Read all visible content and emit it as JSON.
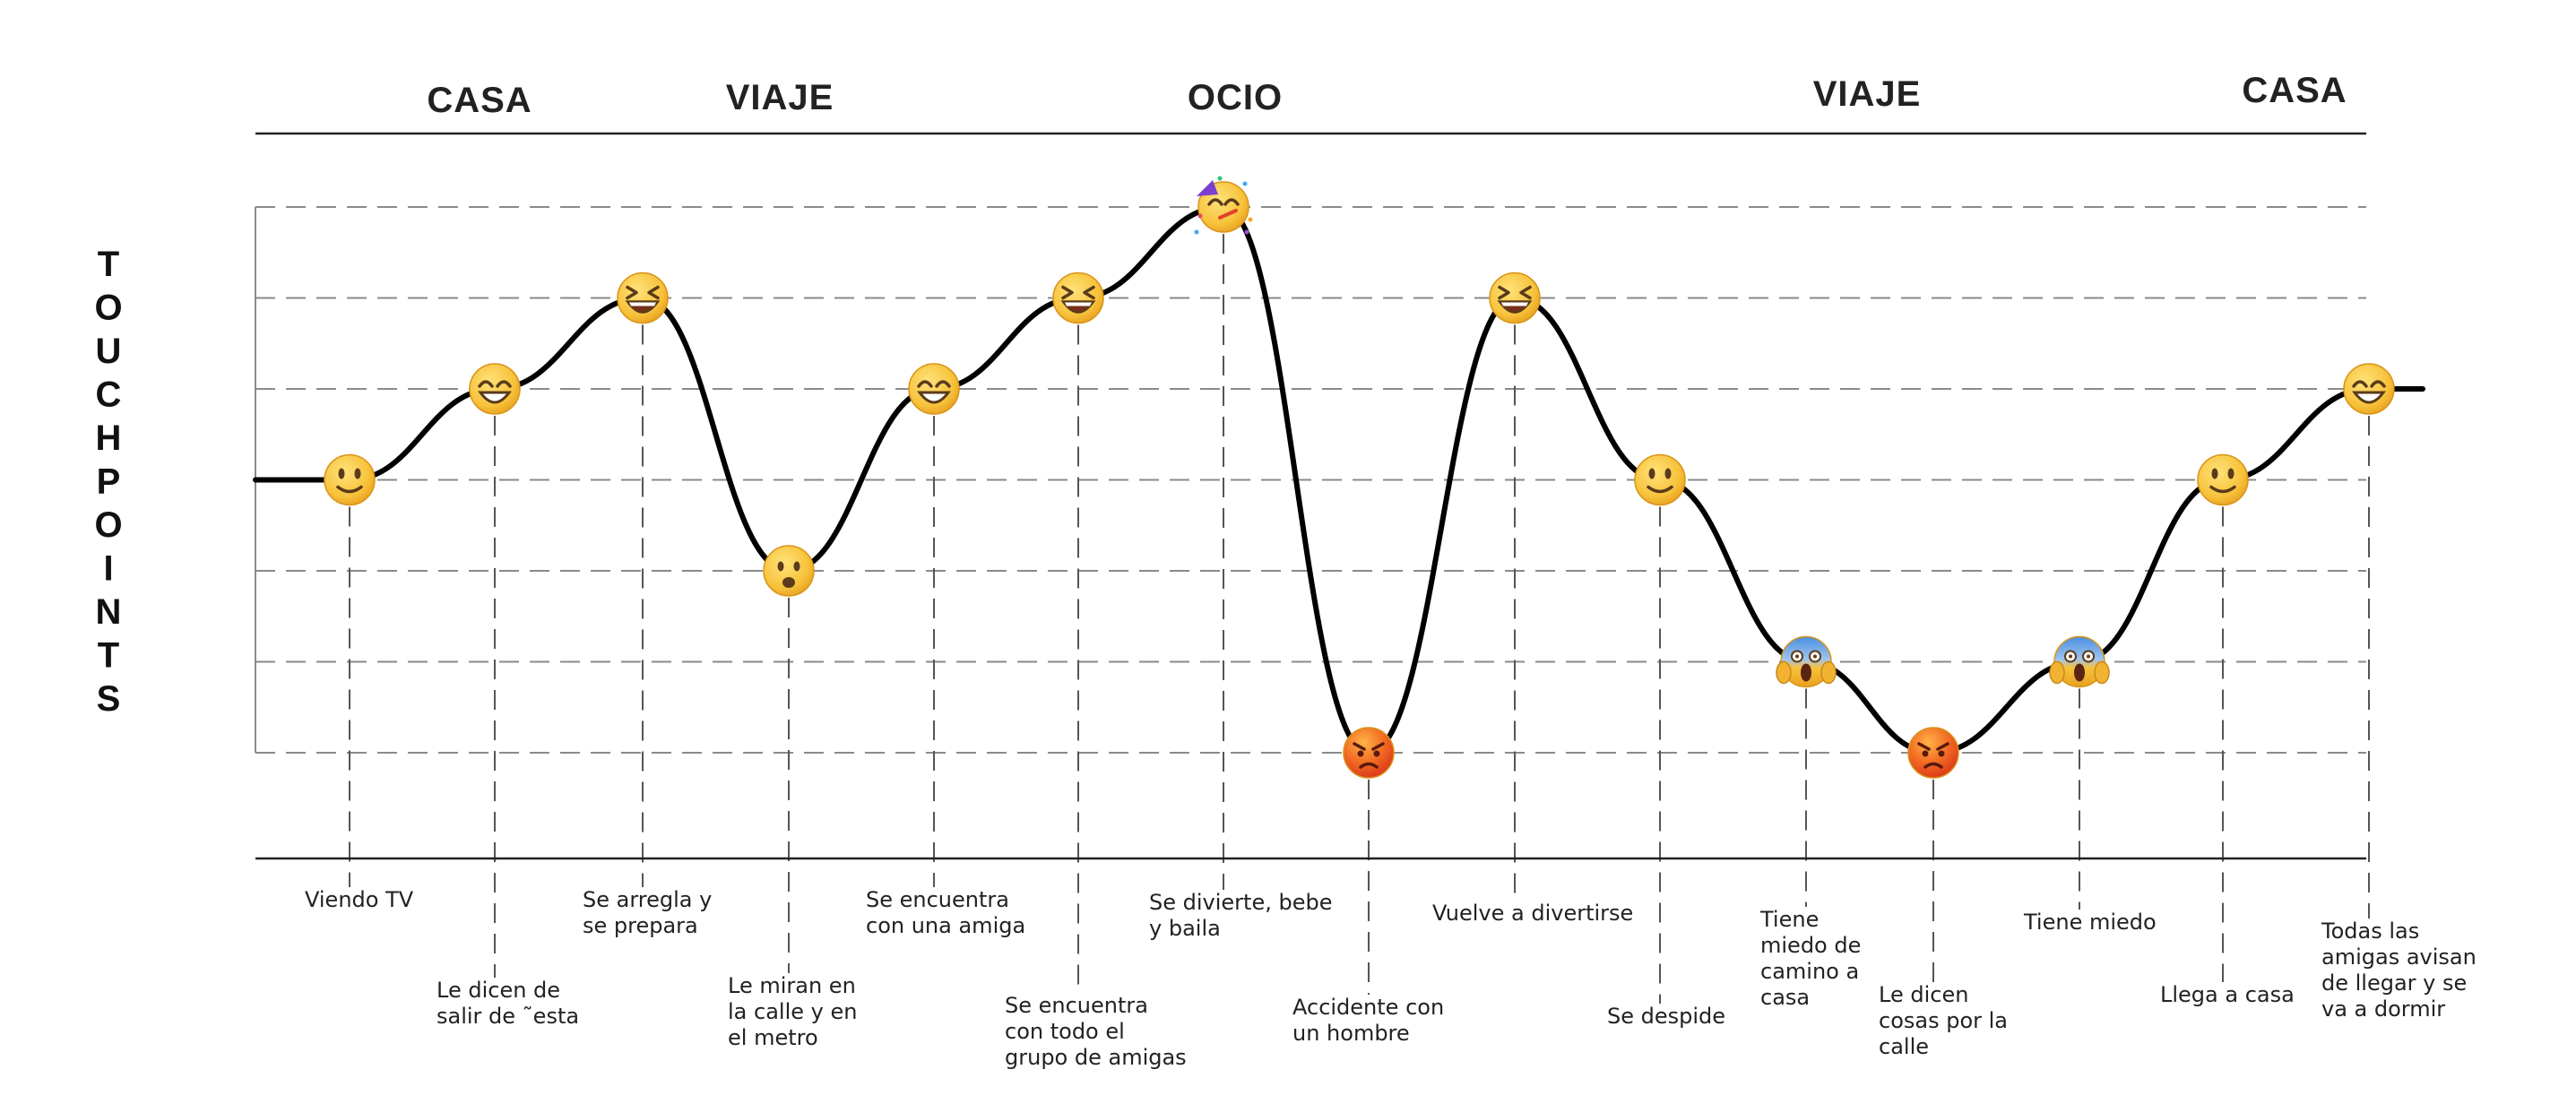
{
  "phases": [
    "CASA",
    "VIAJE",
    "OCIO",
    "VIAJE",
    "CASA"
  ],
  "side_title": [
    "T",
    "O",
    "U",
    "C",
    "H",
    "P",
    "O",
    "I",
    "N",
    "T",
    "S"
  ],
  "chart_data": {
    "type": "line",
    "title": "",
    "xlabel": "",
    "ylabel": "TOUCHPOINTS",
    "ylim": [
      1,
      7
    ],
    "grid": true,
    "levels": 7,
    "points": [
      {
        "level": 4,
        "emotion": "slightly-smiling",
        "label": [
          "Viendo TV"
        ]
      },
      {
        "level": 5,
        "emotion": "grinning",
        "label": [
          "Le dicen de",
          "salir de ˜esta"
        ]
      },
      {
        "level": 6,
        "emotion": "laughing",
        "label": [
          "Se arregla y",
          "se prepara"
        ]
      },
      {
        "level": 3,
        "emotion": "frowning",
        "label": [
          "Le miran en",
          "la calle y en",
          "el metro"
        ]
      },
      {
        "level": 5,
        "emotion": "grinning",
        "label": [
          "Se encuentra",
          "con una amiga"
        ]
      },
      {
        "level": 6,
        "emotion": "laughing",
        "label": [
          "Se encuentra",
          "con todo el",
          "grupo de amigas"
        ]
      },
      {
        "level": 7,
        "emotion": "partying",
        "label": [
          "Se divierte, bebe",
          "y baila"
        ]
      },
      {
        "level": 1,
        "emotion": "angry",
        "label": [
          "Accidente con",
          "un hombre"
        ]
      },
      {
        "level": 6,
        "emotion": "laughing",
        "label": [
          "Vuelve a divertirse"
        ]
      },
      {
        "level": 4,
        "emotion": "slightly-smiling",
        "label": [
          "Se despide"
        ]
      },
      {
        "level": 2,
        "emotion": "screaming",
        "label": [
          "Tiene",
          "miedo de",
          "camino a",
          "casa"
        ]
      },
      {
        "level": 1,
        "emotion": "angry",
        "label": [
          "Le dicen",
          "cosas por la",
          "calle"
        ]
      },
      {
        "level": 2,
        "emotion": "screaming",
        "label": [
          "Tiene miedo"
        ]
      },
      {
        "level": 4,
        "emotion": "slightly-smiling",
        "label": [
          "Llega a casa"
        ]
      },
      {
        "level": 5,
        "emotion": "grinning",
        "label": [
          "Todas las",
          "amigas avisan",
          "de llegar y se",
          "va a dormir"
        ]
      }
    ]
  },
  "colors": {
    "curve": "#000000",
    "face_yellow": "#f7c23a",
    "face_angry": "#e8401c",
    "face_scared": "#4a8fe0",
    "grid": "#8a8a8a"
  }
}
